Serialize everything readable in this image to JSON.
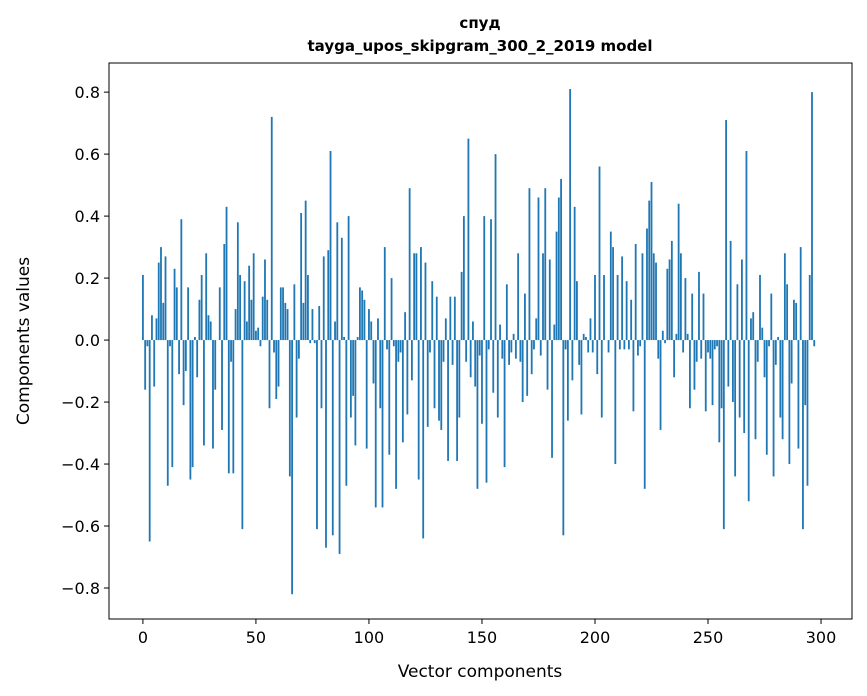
{
  "chart_data": {
    "type": "bar",
    "title": "спуд",
    "subtitle": "tayga_upos_skipgram_300_2_2019 model",
    "xlabel": "Vector components",
    "ylabel": "Components values",
    "xlim": [
      -15,
      313.7
    ],
    "ylim": [
      -0.9,
      0.894
    ],
    "xticks": [
      0,
      50,
      100,
      150,
      200,
      250,
      300
    ],
    "yticks": [
      -0.8,
      -0.6,
      -0.4,
      -0.2,
      0.0,
      0.2,
      0.4,
      0.6,
      0.8
    ],
    "ytick_labels": [
      "−0.8",
      "−0.6",
      "−0.4",
      "−0.2",
      "0.0",
      "0.2",
      "0.4",
      "0.6",
      "0.8"
    ],
    "xtick_labels": [
      "0",
      "50",
      "100",
      "150",
      "200",
      "250",
      "300"
    ],
    "bar_color": "#1f77b4",
    "grid": false,
    "values": [
      0.21,
      -0.16,
      -0.02,
      -0.65,
      0.08,
      -0.15,
      0.07,
      0.25,
      0.3,
      0.12,
      0.27,
      -0.47,
      -0.02,
      -0.41,
      0.23,
      0.17,
      -0.11,
      0.39,
      -0.21,
      -0.1,
      0.17,
      -0.45,
      -0.41,
      0.01,
      -0.12,
      0.13,
      0.21,
      -0.34,
      0.28,
      0.08,
      0.06,
      -0.35,
      -0.16,
      0.0,
      0.17,
      -0.29,
      0.31,
      0.43,
      -0.43,
      -0.07,
      -0.43,
      0.1,
      0.38,
      0.21,
      -0.61,
      0.19,
      0.06,
      0.24,
      0.13,
      0.28,
      0.03,
      0.04,
      -0.02,
      0.14,
      0.26,
      0.13,
      -0.22,
      0.72,
      -0.04,
      -0.19,
      -0.15,
      0.17,
      0.17,
      0.12,
      0.1,
      -0.44,
      -0.82,
      0.18,
      -0.25,
      -0.06,
      0.41,
      0.12,
      0.45,
      0.21,
      -0.01,
      0.1,
      -0.01,
      -0.61,
      0.11,
      -0.22,
      0.27,
      -0.67,
      0.29,
      0.61,
      -0.63,
      0.06,
      0.38,
      -0.69,
      0.33,
      0.01,
      -0.47,
      0.4,
      -0.25,
      -0.18,
      -0.34,
      0.01,
      0.17,
      0.16,
      0.13,
      -0.35,
      0.1,
      0.06,
      -0.14,
      -0.54,
      0.07,
      -0.22,
      -0.54,
      0.3,
      -0.03,
      -0.37,
      0.2,
      -0.02,
      -0.48,
      -0.07,
      -0.04,
      -0.33,
      0.09,
      -0.24,
      0.49,
      -0.13,
      0.28,
      0.28,
      -0.45,
      0.3,
      -0.64,
      0.25,
      -0.28,
      -0.04,
      0.19,
      -0.22,
      0.14,
      -0.26,
      -0.29,
      -0.07,
      0.07,
      -0.39,
      0.14,
      -0.08,
      0.14,
      -0.39,
      -0.25,
      0.22,
      0.4,
      -0.07,
      0.65,
      -0.12,
      0.06,
      -0.15,
      -0.48,
      -0.05,
      -0.27,
      0.4,
      -0.46,
      -0.03,
      0.39,
      -0.17,
      0.6,
      -0.25,
      0.05,
      -0.06,
      -0.41,
      0.18,
      -0.08,
      -0.04,
      0.02,
      -0.06,
      0.28,
      -0.07,
      -0.2,
      0.15,
      -0.18,
      0.49,
      -0.11,
      -0.03,
      0.07,
      0.46,
      -0.05,
      0.28,
      0.49,
      -0.16,
      0.26,
      -0.38,
      0.05,
      0.35,
      0.46,
      0.52,
      -0.63,
      -0.03,
      -0.26,
      0.81,
      -0.13,
      0.43,
      0.19,
      -0.08,
      -0.24,
      0.02,
      0.01,
      -0.04,
      0.07,
      -0.04,
      0.21,
      -0.11,
      0.56,
      -0.25,
      0.21,
      0.0,
      -0.04,
      0.35,
      0.3,
      -0.4,
      0.21,
      -0.03,
      0.27,
      -0.03,
      0.19,
      -0.03,
      0.13,
      -0.23,
      0.31,
      -0.05,
      -0.02,
      0.28,
      -0.48,
      0.36,
      0.45,
      0.51,
      0.28,
      0.25,
      -0.06,
      -0.29,
      0.03,
      -0.01,
      0.23,
      0.26,
      0.32,
      -0.12,
      0.02,
      0.44,
      0.28,
      -0.04,
      0.2,
      0.02,
      -0.22,
      0.15,
      -0.16,
      -0.07,
      0.22,
      -0.06,
      0.15,
      -0.23,
      -0.04,
      -0.06,
      -0.21,
      -0.03,
      -0.02,
      -0.33,
      -0.22,
      -0.61,
      0.71,
      -0.15,
      0.32,
      -0.2,
      -0.44,
      0.18,
      -0.25,
      0.26,
      -0.3,
      0.61,
      -0.52,
      0.07,
      0.09,
      -0.32,
      -0.07,
      0.21,
      0.04,
      -0.12,
      -0.37,
      -0.02,
      0.15,
      -0.44,
      -0.08,
      0.01,
      -0.25,
      -0.32,
      0.28,
      0.18,
      -0.4,
      -0.14,
      0.13,
      0.12,
      -0.35,
      0.3,
      -0.61,
      -0.21,
      -0.47,
      0.21,
      0.8,
      -0.02,
      0.0,
      0.0
    ]
  }
}
